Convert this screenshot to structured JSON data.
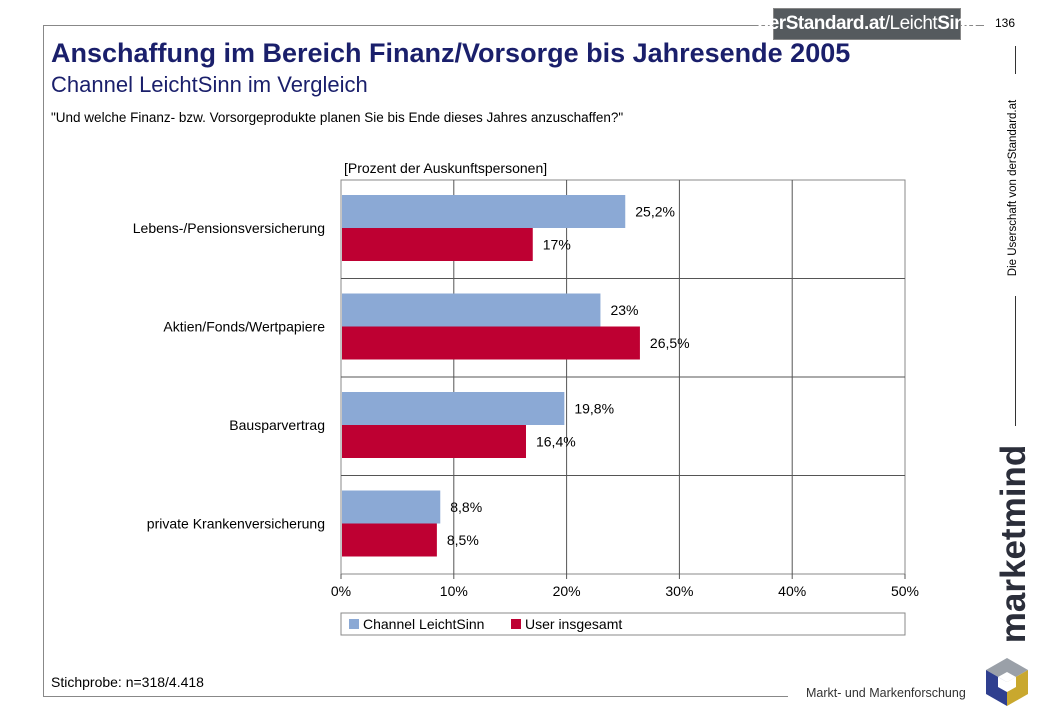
{
  "header": {
    "logo": "derStandard.at/LeichtSinn",
    "logo_main": "derStandard.at",
    "logo_sep": "/",
    "logo_leicht": "Leicht",
    "logo_sinn": "Sinn",
    "page_number": "136"
  },
  "title": "Anschaffung im Bereich Finanz/Vorsorge bis Jahresende 2005",
  "subtitle": "Channel LeichtSinn im Vergleich",
  "question": "\"Und welche Finanz- bzw. Vorsorgeprodukte planen Sie bis Ende dieses Jahres anzuschaffen?\"",
  "sample": "Stichprobe: n=318/4.418",
  "sidebar": {
    "ownership": "Die Userschaft von derStandard.at",
    "brand": "marketmind",
    "brand_subline": "Markt- und Markenforschung"
  },
  "colors": {
    "series_1": "#8ba9d5",
    "series_2": "#be0032",
    "title": "#1a1f6b"
  },
  "chart_data": {
    "type": "bar",
    "orientation": "horizontal",
    "ylabel": "[Prozent der Auskunftspersonen]",
    "categories": [
      "Lebens-/Pensionsversicherung",
      "Aktien/Fonds/Wertpapiere",
      "Bausparvertrag",
      "private Krankenversicherung"
    ],
    "series": [
      {
        "name": "Channel LeichtSinn",
        "values": [
          25.2,
          23,
          19.8,
          8.8
        ],
        "labels": [
          "25,2%",
          "23%",
          "19,8%",
          "8,8%"
        ]
      },
      {
        "name": "User insgesamt",
        "values": [
          17,
          26.5,
          16.4,
          8.5
        ],
        "labels": [
          "17%",
          "26,5%",
          "16,4%",
          "8,5%"
        ]
      }
    ],
    "xlim": [
      0,
      50
    ],
    "xticks": [
      0,
      10,
      20,
      30,
      40,
      50
    ],
    "xtick_labels": [
      "0%",
      "10%",
      "20%",
      "30%",
      "40%",
      "50%"
    ],
    "grid": true,
    "legend": "bottom"
  }
}
